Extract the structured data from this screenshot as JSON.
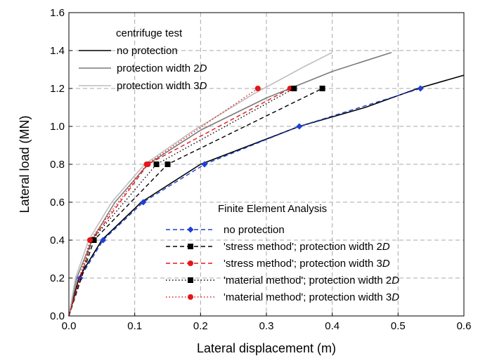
{
  "chart_data": {
    "type": "line",
    "xlabel": "Lateral displacement (m)",
    "ylabel": "Lateral load (MN)",
    "xlim": [
      0,
      0.6
    ],
    "ylim": [
      0,
      1.6
    ],
    "xticks": [
      "0.0",
      "0.1",
      "0.2",
      "0.3",
      "0.4",
      "0.5",
      "0.6"
    ],
    "yticks": [
      "0.0",
      "0.2",
      "0.4",
      "0.6",
      "0.8",
      "1.0",
      "1.2",
      "1.4",
      "1.6"
    ],
    "grid": true,
    "legend_groups": [
      {
        "title": "centrifuge test",
        "placement": "top-left",
        "entries": [
          {
            "series": 0,
            "pre": "no protection",
            "ital": "",
            "post": ""
          },
          {
            "series": 1,
            "pre": "protection width 2",
            "ital": "D",
            "post": ""
          },
          {
            "series": 2,
            "pre": "protection width 3",
            "ital": "D",
            "post": ""
          }
        ]
      },
      {
        "title": "Finite Element Analysis",
        "placement": "bottom-right",
        "entries": [
          {
            "series": 3,
            "pre": "no protection",
            "ital": "",
            "post": ""
          },
          {
            "series": 4,
            "pre": "'stress method'; protection width 2",
            "ital": "D",
            "post": ""
          },
          {
            "series": 5,
            "pre": "'stress method'; protection width 3",
            "ital": "D",
            "post": ""
          },
          {
            "series": 6,
            "pre": "'material method'; protection width 2",
            "ital": "D",
            "post": ""
          },
          {
            "series": 7,
            "pre": "'material method'; protection width 3",
            "ital": "D",
            "post": ""
          }
        ]
      }
    ],
    "series": [
      {
        "group": "centrifuge test",
        "name": "no protection",
        "color": "#000000",
        "line": "solid",
        "marker": "none",
        "x": [
          0,
          0.015,
          0.05,
          0.11,
          0.2,
          0.35,
          0.45,
          0.53,
          0.6
        ],
        "y": [
          0,
          0.2,
          0.4,
          0.6,
          0.8,
          1.0,
          1.1,
          1.2,
          1.27
        ]
      },
      {
        "group": "centrifuge test",
        "name": "protection width 2D",
        "color": "#7a7a7a",
        "line": "solid",
        "marker": "none",
        "x": [
          0,
          0.012,
          0.035,
          0.07,
          0.12,
          0.2,
          0.3,
          0.4,
          0.49
        ],
        "y": [
          0,
          0.2,
          0.4,
          0.6,
          0.8,
          0.98,
          1.15,
          1.29,
          1.39
        ]
      },
      {
        "group": "centrifuge test",
        "name": "protection width 3D",
        "color": "#bdbdbd",
        "line": "solid",
        "marker": "none",
        "x": [
          0,
          0.01,
          0.03,
          0.065,
          0.115,
          0.19,
          0.28,
          0.36,
          0.4
        ],
        "y": [
          0,
          0.2,
          0.4,
          0.6,
          0.8,
          0.98,
          1.17,
          1.32,
          1.39
        ]
      },
      {
        "group": "Finite Element Analysis",
        "name": "no protection",
        "color": "#1f3fd6",
        "line": "dashed",
        "marker": "diamond",
        "x": [
          0,
          0.017,
          0.052,
          0.113,
          0.206,
          0.35,
          0.534
        ],
        "y": [
          0,
          0.2,
          0.4,
          0.6,
          0.8,
          1.0,
          1.2
        ]
      },
      {
        "group": "Finite Element Analysis",
        "name": "'stress method'; protection width 2D",
        "color": "#000000",
        "line": "dashed",
        "marker": "square",
        "x": [
          0,
          0.038,
          0.15,
          0.385
        ],
        "y": [
          0,
          0.4,
          0.8,
          1.2
        ]
      },
      {
        "group": "Finite Element Analysis",
        "name": "'stress method'; protection width 3D",
        "color": "#e3161b",
        "line": "dashed",
        "marker": "circle",
        "x": [
          0,
          0.035,
          0.12,
          0.336
        ],
        "y": [
          0,
          0.4,
          0.8,
          1.2
        ]
      },
      {
        "group": "Finite Element Analysis",
        "name": "'material method'; protection width 2D",
        "color": "#000000",
        "line": "dotted",
        "marker": "square",
        "x": [
          0,
          0.035,
          0.133,
          0.342
        ],
        "y": [
          0,
          0.4,
          0.8,
          1.2
        ]
      },
      {
        "group": "Finite Element Analysis",
        "name": "'material method'; protection width 3D",
        "color": "#e3161b",
        "line": "dotted",
        "marker": "circle",
        "x": [
          0,
          0.032,
          0.118,
          0.287
        ],
        "y": [
          0,
          0.4,
          0.8,
          1.2
        ]
      }
    ]
  }
}
